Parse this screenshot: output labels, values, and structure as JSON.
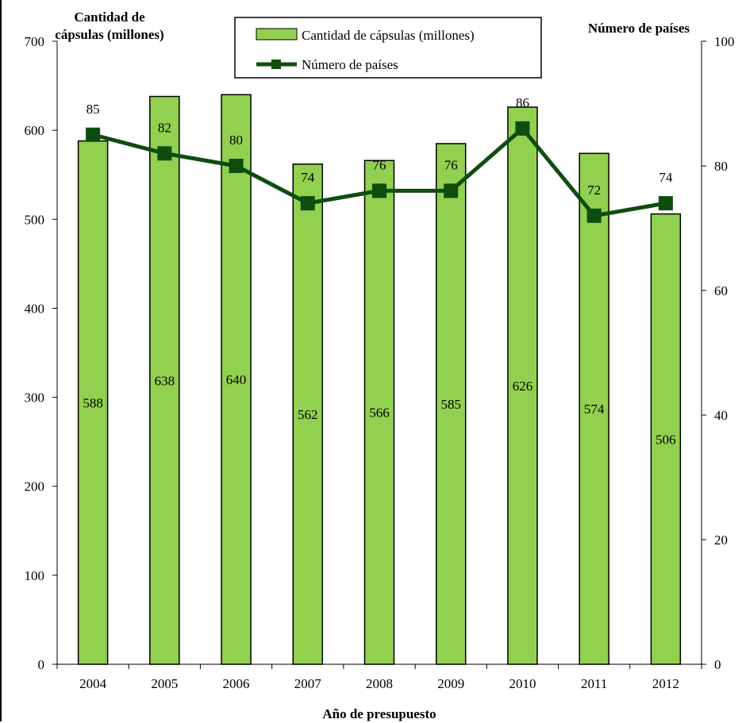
{
  "chart_data": {
    "type": "bar",
    "categories": [
      "2004",
      "2005",
      "2006",
      "2007",
      "2008",
      "2009",
      "2010",
      "2011",
      "2012"
    ],
    "series": [
      {
        "name": "Cantidad de cápsulas (millones)",
        "kind": "bar",
        "axis": "left",
        "color": "#92d050",
        "values": [
          588,
          638,
          640,
          562,
          566,
          585,
          626,
          574,
          506
        ]
      },
      {
        "name": "Número de países",
        "kind": "line",
        "axis": "right",
        "color": "#0e4d0e",
        "values": [
          85,
          82,
          80,
          74,
          76,
          76,
          86,
          72,
          74
        ]
      }
    ],
    "xlabel": "Año de presupuesto",
    "ylabel_left": "Cantidad de cápsulas (millones)",
    "ylabel_left_lines": [
      "Cantidad de",
      "cápsulas (millones)"
    ],
    "ylabel_right": "Número de países",
    "ylim_left": [
      0,
      700
    ],
    "yticks_left": [
      "0",
      "100",
      "200",
      "300",
      "400",
      "500",
      "600",
      "700"
    ],
    "ylim_right": [
      0,
      100
    ],
    "yticks_right": [
      "0",
      "20",
      "40",
      "60",
      "80",
      "100"
    ],
    "grid": false,
    "legend_position": "top-center"
  }
}
